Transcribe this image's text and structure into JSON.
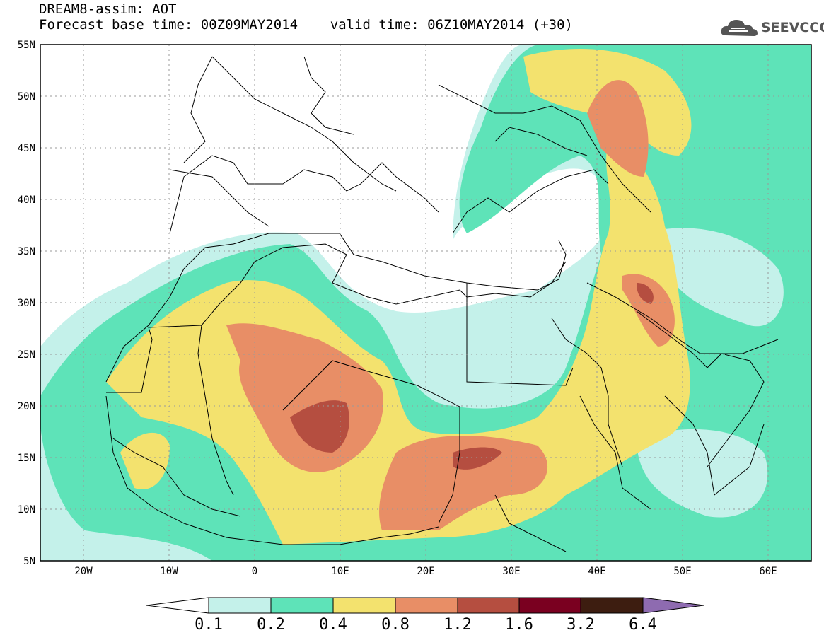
{
  "title": {
    "line1": "DREAM8-assim: AOT",
    "line2": "Forecast base time: 00Z09MAY2014    valid time: 06Z10MAY2014 (+30)"
  },
  "brand": {
    "text": "SEEVCCC",
    "icon": "cloud-logo-icon",
    "color": "#555555"
  },
  "map": {
    "lon_range": [
      -25,
      65
    ],
    "lat_range": [
      5,
      55
    ],
    "lat_labels": [
      "55N",
      "50N",
      "45N",
      "40N",
      "35N",
      "30N",
      "25N",
      "20N",
      "15N",
      "10N",
      "5N"
    ],
    "lon_labels": [
      "20W",
      "10W",
      "0",
      "10E",
      "20E",
      "30E",
      "40E",
      "50E",
      "60E"
    ],
    "grid": "dotted"
  },
  "colorbar": {
    "levels": [
      "0.1",
      "0.2",
      "0.4",
      "0.8",
      "1.2",
      "1.6",
      "3.2",
      "6.4"
    ],
    "colors": [
      "#c4f1ea",
      "#5ee3b8",
      "#f3e26e",
      "#e88e66",
      "#b54e40",
      "#7a0020",
      "#3d1d10",
      "#8e6bb0"
    ],
    "under_color": "#ffffff"
  }
}
